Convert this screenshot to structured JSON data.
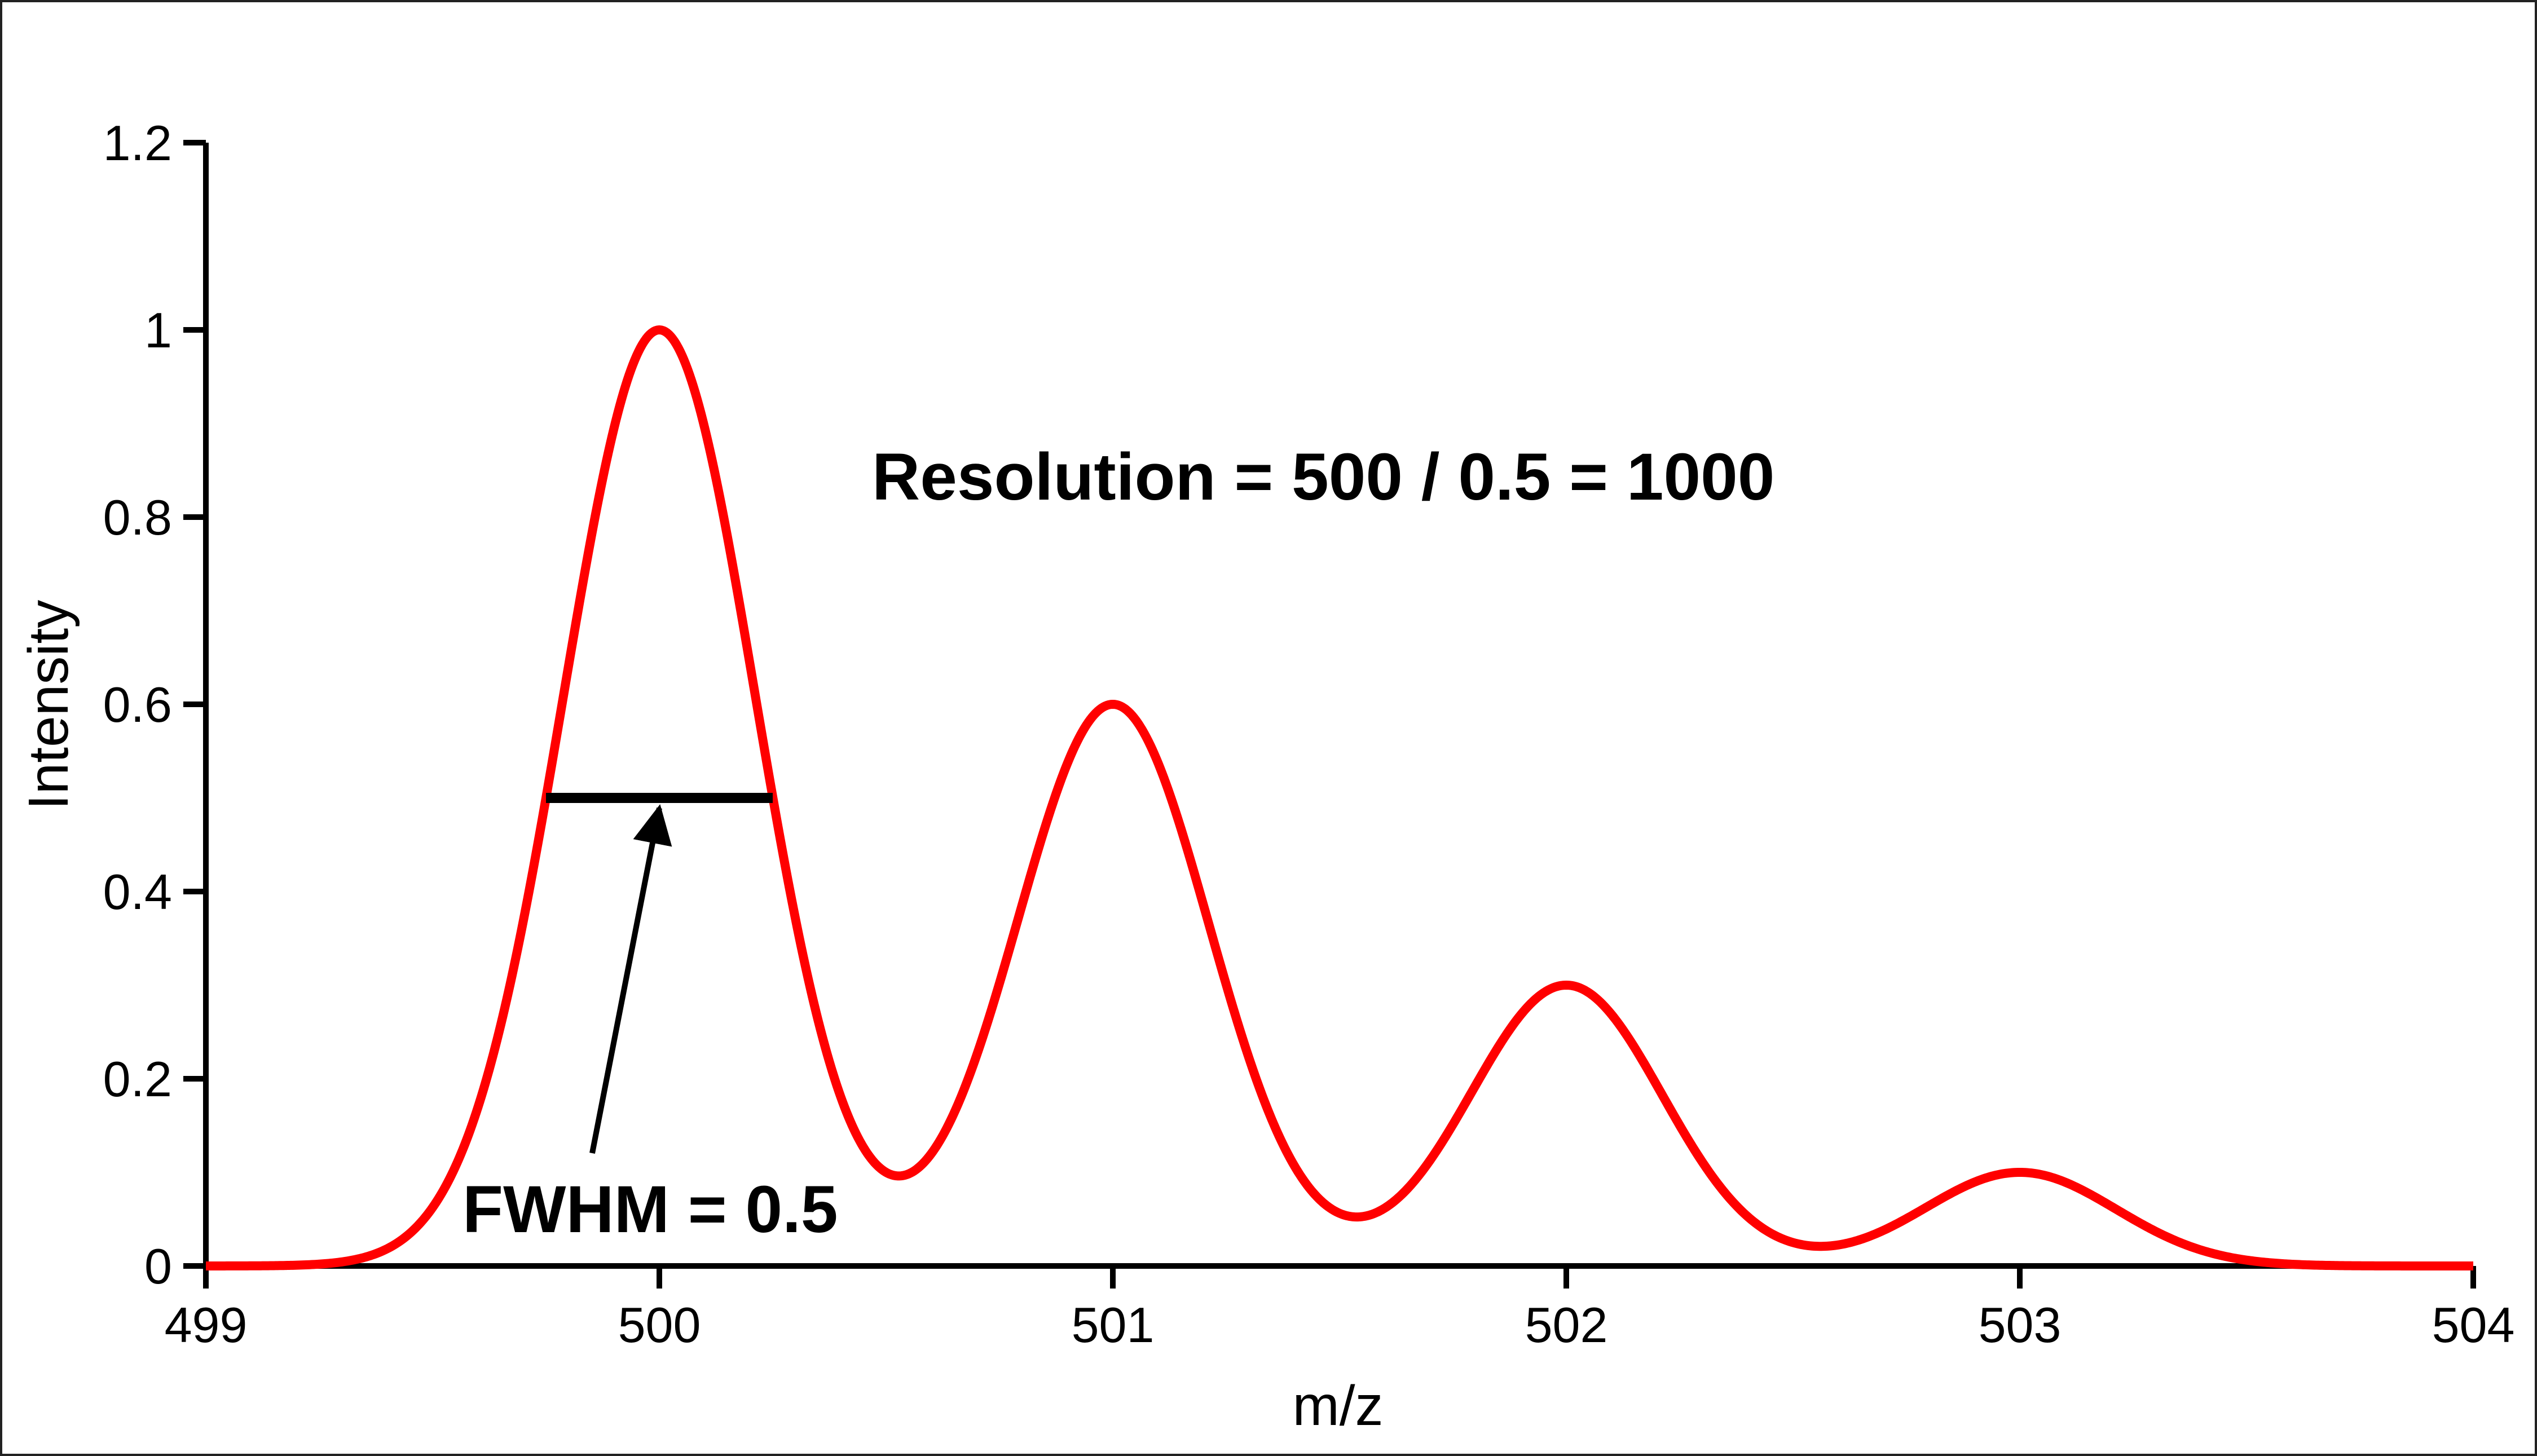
{
  "chart_data": {
    "type": "line",
    "title": "",
    "xlabel": "m/z",
    "ylabel": "Intensity",
    "xlim": [
      499,
      504
    ],
    "ylim": [
      0,
      1.2
    ],
    "grid": false,
    "legend": "none",
    "x_ticks": [
      "499",
      "500",
      "501",
      "502",
      "503",
      "504"
    ],
    "y_ticks": [
      "0",
      "0.2",
      "0.4",
      "0.6",
      "0.8",
      "1",
      "1.2"
    ],
    "series": [
      {
        "color": "#ff0000",
        "peaks": [
          {
            "center": 500,
            "height": 1.0,
            "fwhm": 0.5
          },
          {
            "center": 501,
            "height": 0.6,
            "fwhm": 0.5
          },
          {
            "center": 502,
            "height": 0.3,
            "fwhm": 0.5
          },
          {
            "center": 503,
            "height": 0.1,
            "fwhm": 0.5
          }
        ]
      }
    ],
    "annotations": {
      "resolution_text": "Resolution = 500 / 0.5 = 1000",
      "fwhm_text": "FWHM = 0.5",
      "fwhm_bar": {
        "x_start": 499.75,
        "x_end": 500.25,
        "y": 0.5
      }
    }
  }
}
